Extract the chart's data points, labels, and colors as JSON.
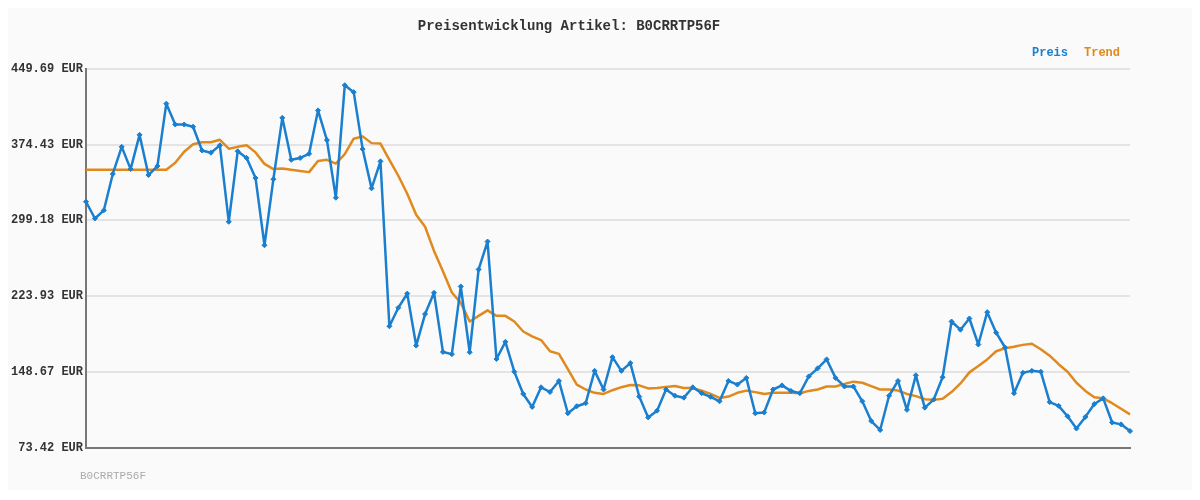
{
  "chart_data": {
    "type": "line",
    "title": "Preisentwicklung Artikel: B0CRRTP56F",
    "categories": [
      null,
      null,
      null,
      null,
      null,
      null,
      null,
      null,
      null,
      null,
      null,
      null,
      null,
      null,
      null,
      null,
      null,
      null,
      null,
      null,
      null,
      null,
      null,
      null,
      null,
      null,
      null,
      null,
      null,
      null,
      null,
      null,
      null,
      null,
      null,
      null,
      null,
      null,
      null,
      null,
      null,
      null,
      null,
      null,
      null,
      null,
      null,
      null,
      null,
      null,
      null,
      null,
      null,
      null,
      null,
      null,
      null,
      null,
      null,
      null,
      null,
      null,
      null,
      null,
      null,
      null,
      null,
      null,
      null,
      null,
      null,
      null,
      null,
      null,
      null,
      null,
      null,
      null,
      null,
      null,
      null,
      null,
      null,
      null,
      null,
      null,
      null,
      null,
      null,
      null,
      null,
      null,
      null,
      null,
      null,
      null,
      null,
      null,
      null,
      null,
      null,
      null,
      null,
      null,
      null,
      null,
      null,
      null,
      null,
      null,
      null,
      null,
      null,
      null,
      null,
      null,
      null,
      null
    ],
    "series": [
      {
        "name": "Preis",
        "color": "#1a7fcf",
        "marker": "diamond",
        "values": [
          317.7,
          301.1,
          309.2,
          345.3,
          372.2,
          350.1,
          384.1,
          344.2,
          353.1,
          415.1,
          394.4,
          394.4,
          392.2,
          368.6,
          366.4,
          373.7,
          297.8,
          367.8,
          361.2,
          341.2,
          274.5,
          340.1,
          401.0,
          359.3,
          361.2,
          365.3,
          408.4,
          378.9,
          321.7,
          433.4,
          426.5,
          370.0,
          331.0,
          357.8,
          194.1,
          212.5,
          226.5,
          174.9,
          206.2,
          227.3,
          168.6,
          166.4,
          233.6,
          168.3,
          250.5,
          278.2,
          161.6,
          178.6,
          149.0,
          126.9,
          114.0,
          133.5,
          128.8,
          139.8,
          107.7,
          114.7,
          117.7,
          149.8,
          131.3,
          163.4,
          149.8,
          157.5,
          124.3,
          103.6,
          110.3,
          131.3,
          125.1,
          123.2,
          133.5,
          127.6,
          124.0,
          119.6,
          139.8,
          136.2,
          142.8,
          107.7,
          108.5,
          131.3,
          135.4,
          129.9,
          127.6,
          144.3,
          152.3,
          161.2,
          142.8,
          134.3,
          134.3,
          119.6,
          100.0,
          91.1,
          125.1,
          139.8,
          111.1,
          145.4,
          113.3,
          121.3,
          143.5,
          198.8,
          190.7,
          201.8,
          176.0,
          208.1,
          187.7,
          173.0,
          127.6,
          147.9,
          149.8,
          149.0,
          118.8,
          115.1,
          104.7,
          92.6,
          104.1,
          116.9,
          122.5,
          98.5,
          96.7,
          90.0
        ]
      },
      {
        "name": "Trend",
        "color": "#e08a1e",
        "marker": "none",
        "values": [
          349.4,
          349.4,
          349.4,
          349.4,
          349.4,
          349.4,
          349.4,
          349.4,
          349.4,
          349.4,
          356.4,
          367.4,
          374.8,
          376.7,
          376.7,
          379.2,
          370.4,
          372.2,
          373.7,
          366.7,
          355.3,
          350.1,
          350.8,
          349.4,
          348.3,
          347.1,
          358.2,
          359.3,
          355.6,
          364.9,
          380.3,
          382.6,
          375.9,
          375.5,
          359.3,
          343.5,
          325.7,
          304.7,
          292.9,
          268.9,
          248.6,
          227.6,
          217.3,
          198.8,
          204.4,
          209.9,
          204.4,
          204.4,
          198.8,
          188.9,
          184.1,
          180.4,
          169.3,
          166.7,
          151.6,
          136.1,
          131.3,
          128.0,
          126.9,
          130.6,
          133.6,
          135.8,
          135.4,
          132.4,
          132.8,
          133.9,
          134.7,
          132.8,
          132.8,
          130.2,
          126.9,
          122.9,
          124.3,
          128.0,
          130.2,
          128.7,
          126.9,
          128.0,
          128.0,
          128.0,
          127.6,
          129.9,
          131.3,
          134.3,
          134.3,
          136.9,
          139.1,
          138.0,
          134.7,
          131.3,
          131.3,
          130.2,
          126.9,
          124.7,
          121.7,
          121.0,
          122.1,
          128.7,
          137.3,
          148.3,
          154.6,
          161.2,
          169.3,
          172.3,
          173.8,
          175.6,
          176.7,
          171.2,
          164.9,
          156.4,
          149.0,
          138.0,
          129.9,
          123.6,
          122.5,
          117.7,
          112.2,
          106.6
        ]
      }
    ],
    "ylim": [
      73.42,
      449.69
    ],
    "yticks": [
      {
        "value": 73.42,
        "label": "73.42 EUR"
      },
      {
        "value": 148.67,
        "label": "148.67 EUR"
      },
      {
        "value": 223.93,
        "label": "223.93 EUR"
      },
      {
        "value": 299.18,
        "label": "299.18 EUR"
      },
      {
        "value": 374.43,
        "label": "374.43 EUR"
      },
      {
        "value": 449.69,
        "label": "449.69 EUR"
      }
    ],
    "grid": "y",
    "legend": "top right",
    "tick_labels": "y",
    "line_style": "solid",
    "annotations": [
      "B0CRRTP56F"
    ]
  }
}
